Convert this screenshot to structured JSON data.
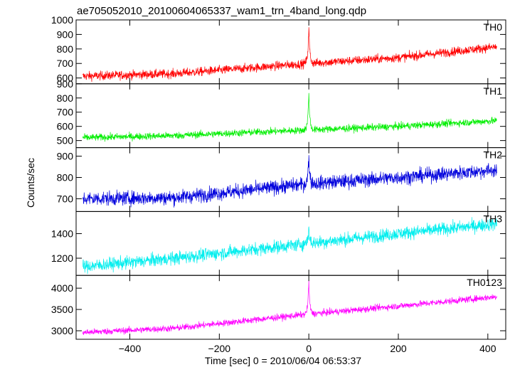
{
  "chart_data": {
    "type": "line",
    "title": "ae705052010_20100604065337_wam1_trn_4band_long.qdp",
    "xlabel": "Time [sec] 0 = 2010/06/04 06:53:37",
    "ylabel": "Counts/sec",
    "xlim": [
      -520,
      440
    ],
    "x_ticks": [
      -400,
      -200,
      0,
      200,
      400
    ],
    "grid": false,
    "panels": [
      {
        "name": "TH0",
        "color": "#ff0000",
        "ylim": [
          560,
          1000
        ],
        "y_ticks": [
          600,
          700,
          800,
          900,
          1000
        ],
        "baseline": {
          "x": [
            -505,
            -300,
            0,
            200,
            420
          ],
          "y": [
            612,
            630,
            700,
            740,
            815
          ]
        },
        "noise_amplitude": 22,
        "spike": {
          "x": 0,
          "peak": 1000
        }
      },
      {
        "name": "TH1",
        "color": "#00ee00",
        "ylim": [
          450,
          900
        ],
        "y_ticks": [
          500,
          600,
          700,
          800,
          900
        ],
        "baseline": {
          "x": [
            -505,
            -300,
            0,
            200,
            420
          ],
          "y": [
            520,
            535,
            575,
            600,
            640
          ]
        },
        "noise_amplitude": 18,
        "spike": {
          "x": 0,
          "peak": 890
        }
      },
      {
        "name": "TH2",
        "color": "#0000dd",
        "ylim": [
          640,
          940
        ],
        "y_ticks": [
          700,
          800,
          900
        ],
        "baseline": {
          "x": [
            -505,
            -300,
            0,
            200,
            420
          ],
          "y": [
            700,
            705,
            770,
            800,
            835
          ]
        },
        "noise_amplitude": 24,
        "spike": {
          "x": 0,
          "peak": 925
        }
      },
      {
        "name": "TH3",
        "color": "#00eeee",
        "ylim": [
          1060,
          1580
        ],
        "y_ticks": [
          1200,
          1400
        ],
        "baseline": {
          "x": [
            -505,
            -300,
            0,
            200,
            420
          ],
          "y": [
            1130,
            1200,
            1320,
            1400,
            1480
          ]
        },
        "noise_amplitude": 38,
        "spike": {
          "x": 0,
          "peak": 1470
        }
      },
      {
        "name": "TH0123",
        "color": "#ff00ff",
        "ylim": [
          2800,
          4300
        ],
        "y_ticks": [
          3000,
          3500,
          4000
        ],
        "baseline": {
          "x": [
            -505,
            -300,
            0,
            200,
            420
          ],
          "y": [
            2960,
            3060,
            3390,
            3580,
            3800
          ]
        },
        "noise_amplitude": 55,
        "spike": {
          "x": 0,
          "peak": 4300
        }
      }
    ]
  }
}
